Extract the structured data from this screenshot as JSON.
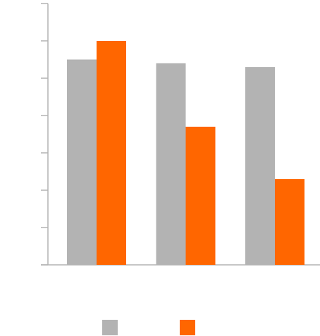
{
  "chart_data": {
    "type": "bar",
    "categories": [
      "",
      "",
      ""
    ],
    "series": [
      {
        "values": [
          5.5,
          5.4,
          5.3
        ],
        "color": "#b3b3b3"
      },
      {
        "values": [
          6.0,
          3.7,
          2.3
        ],
        "color": "#ff6600"
      }
    ],
    "title": "",
    "xlabel": "",
    "ylabel": "",
    "ylim": [
      0,
      7
    ],
    "y_ticks": [
      0,
      1,
      2,
      3,
      4,
      5,
      6,
      7
    ],
    "grid": false,
    "legend_position": "bottom"
  }
}
